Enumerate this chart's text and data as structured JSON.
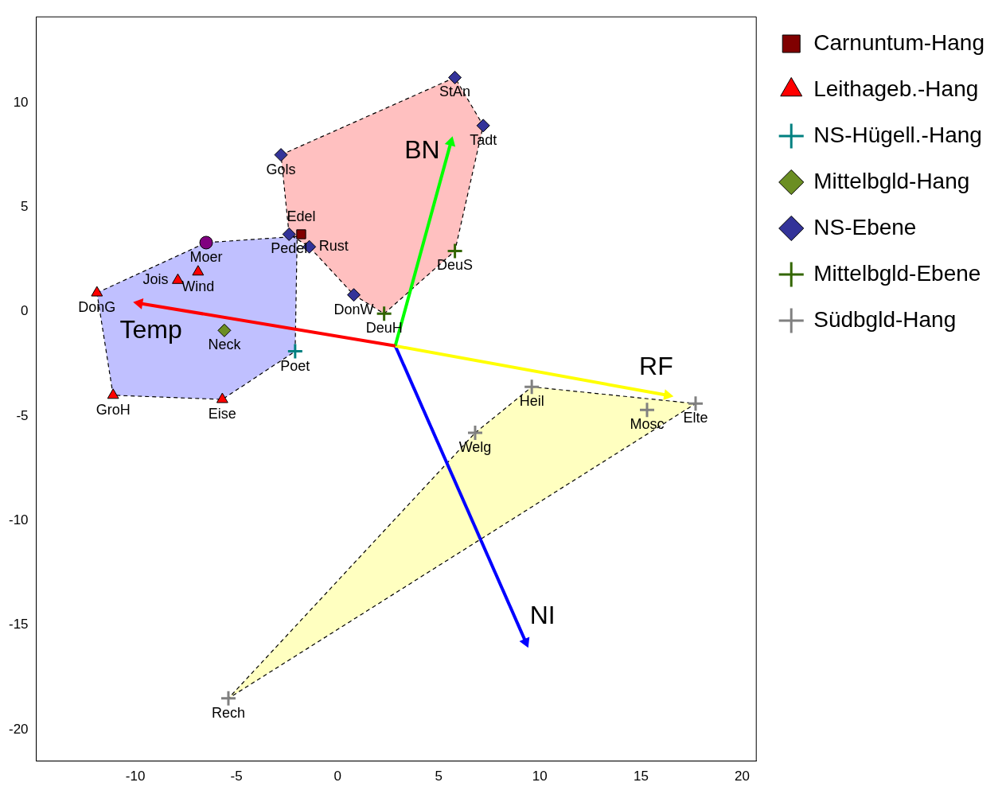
{
  "chart_data": {
    "type": "scatter",
    "xlim": [
      -14.9,
      20.7
    ],
    "ylim": [
      -21.5,
      14.1
    ],
    "xticks": [
      -10,
      -5,
      0,
      5,
      10,
      15,
      20
    ],
    "yticks": [
      -20,
      -15,
      -10,
      -5,
      0,
      5,
      10
    ],
    "grid": false,
    "legend": "right",
    "series": [
      {
        "type": "area",
        "color": "#ffc0c0",
        "line_style": "dashed",
        "marker": "none",
        "x": [
          -2.8,
          5.8,
          7.2,
          5.8,
          2.3,
          0.8,
          -1.4,
          -2.4,
          -2.8
        ],
        "values": [
          7.5,
          11.2,
          8.9,
          2.9,
          -0.1,
          0.8,
          3.1,
          3.7,
          7.5
        ]
      },
      {
        "type": "area",
        "color": "#c0c0ff",
        "line_style": "dashed",
        "marker": "none",
        "x": [
          -11.9,
          -6.5,
          -2.0,
          -2.1,
          -5.7,
          -11.1,
          -11.9
        ],
        "values": [
          0.9,
          3.3,
          3.6,
          -1.9,
          -4.2,
          -4.0,
          0.9
        ]
      },
      {
        "type": "area",
        "color": "#ffffc0",
        "line_style": "dashed",
        "marker": "none",
        "x": [
          6.8,
          9.6,
          17.7,
          -5.4,
          6.8
        ],
        "values": [
          -5.8,
          -3.6,
          -4.4,
          -18.5,
          -5.8
        ]
      },
      {
        "type": "line",
        "name": "Temp",
        "color": "#ff0000",
        "marker": "triangle",
        "x": [
          2.85,
          -9.8
        ],
        "values": [
          -1.64,
          0.4
        ]
      },
      {
        "type": "line",
        "name": "BN",
        "color": "#00ff00",
        "marker": "triangle",
        "x": [
          2.85,
          5.6
        ],
        "values": [
          -1.64,
          8.1
        ]
      },
      {
        "type": "line",
        "name": "RF",
        "color": "#ffff00",
        "marker": "triangle",
        "x": [
          2.85,
          16.3
        ],
        "values": [
          -1.64,
          -4.0
        ]
      },
      {
        "type": "line",
        "name": "NI",
        "color": "#0000ff",
        "marker": "triangle",
        "x": [
          2.85,
          9.3
        ],
        "values": [
          -1.64,
          -15.8
        ]
      },
      {
        "name": "Carnuntum-Hang",
        "color": "#800000",
        "marker": "square",
        "x": [
          -1.8
        ],
        "values": [
          3.7
        ]
      },
      {
        "name": "Leithageb.-Hang",
        "color": "#ff0000",
        "marker": "triangle",
        "x": [
          -11.9,
          -7.9,
          -6.9,
          -11.1,
          -5.7
        ],
        "values": [
          0.9,
          1.5,
          1.9,
          -4.0,
          -4.2
        ]
      },
      {
        "name": "NS-Hügell.-Hang",
        "color": "#008080",
        "marker": "cross",
        "x": [
          -2.1
        ],
        "values": [
          -1.9
        ]
      },
      {
        "name": "Mittelbgld-Hang",
        "color": "#6b8e23",
        "marker": "diamond",
        "x": [
          -5.6
        ],
        "values": [
          -0.9
        ]
      },
      {
        "name": "NS-Ebene",
        "color": "#333399",
        "marker": "diamond",
        "x": [
          5.8,
          7.2,
          -2.8,
          -2.4,
          -1.4,
          0.8
        ],
        "values": [
          11.2,
          8.9,
          7.5,
          3.7,
          3.1,
          0.8
        ]
      },
      {
        "name": "Mittelbgld-Ebene",
        "color": "#336600",
        "marker": "cross",
        "x": [
          5.8,
          2.3
        ],
        "values": [
          2.9,
          -0.1
        ]
      },
      {
        "name": "Südbgld-Hang",
        "color": "#808080",
        "marker": "cross",
        "x": [
          9.6,
          15.3,
          17.7,
          6.8,
          -5.4
        ],
        "values": [
          -3.6,
          -4.7,
          -4.4,
          -5.8,
          -18.5
        ]
      },
      {
        "color": "#800080",
        "marker": "circle",
        "x": [
          -6.5
        ],
        "values": [
          3.3
        ]
      }
    ],
    "annotations": [
      {
        "text": "StAn",
        "x": 5.8,
        "y": 11.2
      },
      {
        "text": "Tadt",
        "x": 7.2,
        "y": 8.9
      },
      {
        "text": "Gols",
        "x": -2.8,
        "y": 7.5
      },
      {
        "text": "Pedel",
        "x": -2.4,
        "y": 3.7
      },
      {
        "text": "Edel",
        "x": -1.8,
        "y": 3.7
      },
      {
        "text": "Rust",
        "x": -1.4,
        "y": 3.1
      },
      {
        "text": "DonW",
        "x": 0.8,
        "y": 0.8
      },
      {
        "text": "DeuS",
        "x": 5.8,
        "y": 2.9
      },
      {
        "text": "DeuH",
        "x": 2.3,
        "y": -0.1
      },
      {
        "text": "Moer",
        "x": -6.5,
        "y": 3.3
      },
      {
        "text": "Wind",
        "x": -6.9,
        "y": 1.9
      },
      {
        "text": "Jois",
        "x": -7.9,
        "y": 1.5
      },
      {
        "text": "DonG",
        "x": -11.9,
        "y": 0.9
      },
      {
        "text": "Neck",
        "x": -5.6,
        "y": -0.9
      },
      {
        "text": "Poet",
        "x": -2.1,
        "y": -1.9
      },
      {
        "text": "GroH",
        "x": -11.1,
        "y": -4.0
      },
      {
        "text": "Eise",
        "x": -5.7,
        "y": -4.2
      },
      {
        "text": "Heil",
        "x": 9.6,
        "y": -3.6
      },
      {
        "text": "Mosc",
        "x": 15.3,
        "y": -4.7
      },
      {
        "text": "Elte",
        "x": 17.7,
        "y": -4.4
      },
      {
        "text": "Welg",
        "x": 6.8,
        "y": -5.8
      },
      {
        "text": "Rech",
        "x": -5.4,
        "y": -18.5
      }
    ]
  }
}
